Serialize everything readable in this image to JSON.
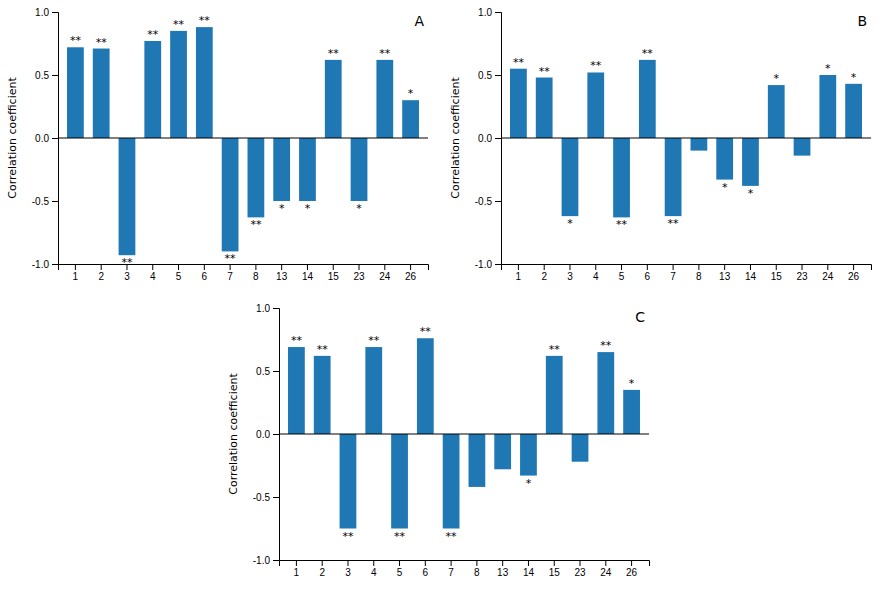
{
  "chart_data": [
    {
      "type": "bar",
      "title": "A",
      "categories": [
        "1",
        "2",
        "3",
        "4",
        "5",
        "6",
        "7",
        "8",
        "13",
        "14",
        "15",
        "23",
        "24",
        "26"
      ],
      "values": [
        0.72,
        0.71,
        -0.93,
        0.77,
        0.85,
        0.88,
        -0.9,
        -0.63,
        -0.5,
        -0.5,
        0.62,
        -0.5,
        0.62,
        0.3
      ],
      "annotations": [
        "**",
        "**",
        "**",
        "**",
        "**",
        "**",
        "**",
        "**",
        "*",
        "*",
        "**",
        "*",
        "**",
        "*"
      ],
      "y_label": "Correlation coefficient",
      "ylim": [
        -1.0,
        1.0
      ],
      "yticks": [
        {
          "value": -1.0,
          "label": "-1.0"
        },
        -0.5,
        {
          "value": 0.0,
          "label": "0.0"
        },
        0.5,
        {
          "value": 1.0,
          "label": "1.0"
        }
      ]
    },
    {
      "type": "bar",
      "title": "B",
      "categories": [
        "1",
        "2",
        "3",
        "4",
        "5",
        "6",
        "7",
        "8",
        "13",
        "14",
        "15",
        "23",
        "24",
        "26"
      ],
      "values": [
        0.55,
        0.48,
        -0.62,
        0.52,
        -0.63,
        0.62,
        -0.62,
        -0.1,
        -0.33,
        -0.38,
        0.42,
        -0.14,
        0.5,
        0.43
      ],
      "annotations": [
        "**",
        "**",
        "*",
        "**",
        "**",
        "**",
        "**",
        null,
        "*",
        "*",
        "*",
        null,
        "*",
        "*"
      ],
      "y_label": "Correlation coefficient",
      "ylim": [
        -1.0,
        1.0
      ],
      "yticks": [
        {
          "value": -1.0,
          "label": "-1.0"
        },
        -0.5,
        {
          "value": 0.0,
          "label": "0.0"
        },
        0.5,
        {
          "value": 1.0,
          "label": "1.0"
        }
      ]
    },
    {
      "type": "bar",
      "title": "C",
      "categories": [
        "1",
        "2",
        "3",
        "4",
        "5",
        "6",
        "7",
        "8",
        "13",
        "14",
        "15",
        "23",
        "24",
        "26"
      ],
      "values": [
        0.69,
        0.62,
        -0.75,
        0.69,
        -0.75,
        0.76,
        -0.75,
        -0.42,
        -0.28,
        -0.33,
        0.62,
        -0.22,
        0.65,
        0.35
      ],
      "annotations": [
        "**",
        "**",
        "**",
        "**",
        "**",
        "**",
        "**",
        null,
        null,
        "*",
        "**",
        null,
        "**",
        "*"
      ],
      "y_label": "Correlation coefficient",
      "ylim": [
        -1.0,
        1.0
      ],
      "yticks": [
        {
          "value": -1.0,
          "label": "-1.0"
        },
        -0.5,
        {
          "value": 0.0,
          "label": "0.0"
        },
        0.5,
        {
          "value": 1.0,
          "label": "1.0"
        }
      ]
    }
  ]
}
